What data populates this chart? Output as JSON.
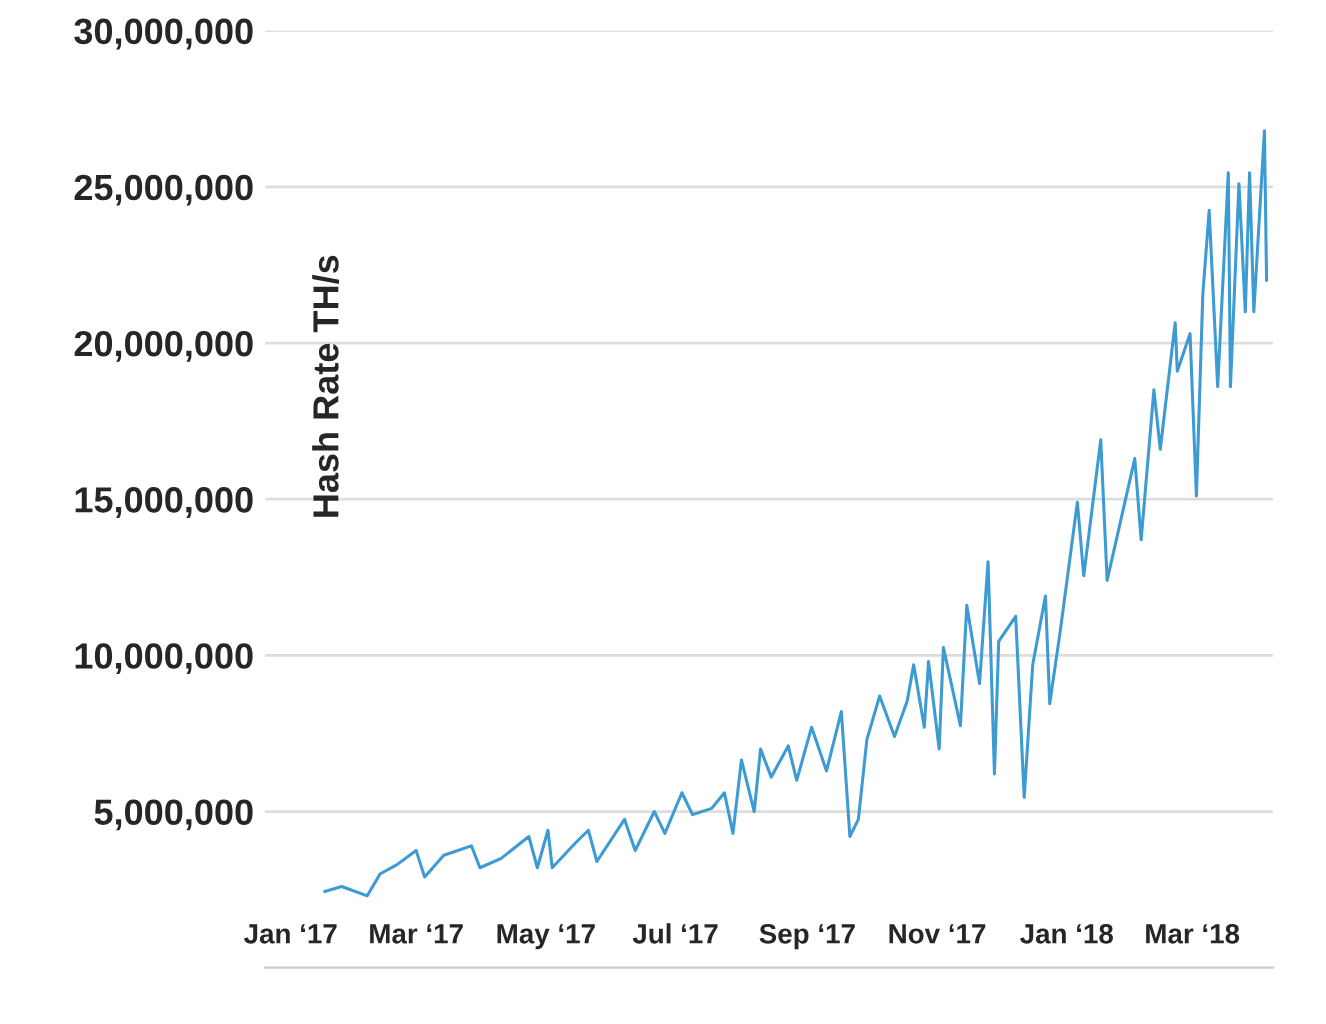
{
  "chart_data": {
    "type": "line",
    "ylabel": "Hash Rate TH/s",
    "x": [
      "2017-01-17",
      "2017-01-25",
      "2017-02-06",
      "2017-02-12",
      "2017-02-20",
      "2017-03-01",
      "2017-03-05",
      "2017-03-14",
      "2017-03-27",
      "2017-03-31",
      "2017-04-10",
      "2017-04-23",
      "2017-04-27",
      "2017-05-02",
      "2017-05-04",
      "2017-05-15",
      "2017-05-21",
      "2017-05-25",
      "2017-06-07",
      "2017-06-12",
      "2017-06-21",
      "2017-06-26",
      "2017-07-04",
      "2017-07-09",
      "2017-07-18",
      "2017-07-24",
      "2017-07-28",
      "2017-08-01",
      "2017-08-07",
      "2017-08-10",
      "2017-08-15",
      "2017-08-23",
      "2017-08-27",
      "2017-09-03",
      "2017-09-10",
      "2017-09-17",
      "2017-09-21",
      "2017-09-25",
      "2017-09-29",
      "2017-10-05",
      "2017-10-12",
      "2017-10-18",
      "2017-10-21",
      "2017-10-26",
      "2017-10-28",
      "2017-11-02",
      "2017-11-04",
      "2017-11-12",
      "2017-11-15",
      "2017-11-21",
      "2017-11-25",
      "2017-11-28",
      "2017-11-30",
      "2017-12-08",
      "2017-12-12",
      "2017-12-16",
      "2017-12-22",
      "2017-12-24",
      "2017-12-29",
      "2018-01-06",
      "2018-01-09",
      "2018-01-17",
      "2018-01-20",
      "2018-02-02",
      "2018-02-05",
      "2018-02-11",
      "2018-02-14",
      "2018-02-21",
      "2018-02-22",
      "2018-02-28",
      "2018-03-03",
      "2018-03-06",
      "2018-03-09",
      "2018-03-13",
      "2018-03-18",
      "2018-03-19",
      "2018-03-23",
      "2018-03-26",
      "2018-03-28",
      "2018-03-30",
      "2018-04-04",
      "2018-04-05"
    ],
    "series": [
      {
        "color": "#3d9bd3",
        "values": [
          2440000,
          2600000,
          2300000,
          3000000,
          3300000,
          3750000,
          2900000,
          3600000,
          3900000,
          3200000,
          3500000,
          4200000,
          3200000,
          4400000,
          3200000,
          4000000,
          4400000,
          3400000,
          4750000,
          3750000,
          5000000,
          4300000,
          5600000,
          4900000,
          5100000,
          5600000,
          4300000,
          6650000,
          5000000,
          7000000,
          6100000,
          7100000,
          6000000,
          7700000,
          6300000,
          8200000,
          4200000,
          4750000,
          7300000,
          8700000,
          7400000,
          8550000,
          9700000,
          7700000,
          9800000,
          7000000,
          10250000,
          7750000,
          11600000,
          9100000,
          13000000,
          6200000,
          10450000,
          11250000,
          5450000,
          9700000,
          11900000,
          8450000,
          10800000,
          14900000,
          12550000,
          16900000,
          12400000,
          16300000,
          13700000,
          18500000,
          16600000,
          20650000,
          19100000,
          20300000,
          15100000,
          21550000,
          24250000,
          18600000,
          25450000,
          18600000,
          25100000,
          21000000,
          25450000,
          21000000,
          26800000,
          22000000
        ]
      }
    ],
    "xlim": [
      "2016-12-20",
      "2018-04-08"
    ],
    "xticks": [
      {
        "value": "2017-01-01",
        "label": "Jan ‘17"
      },
      {
        "value": "2017-03-01",
        "label": "Mar ‘17"
      },
      {
        "value": "2017-05-01",
        "label": "May ‘17"
      },
      {
        "value": "2017-07-01",
        "label": "Jul ‘17"
      },
      {
        "value": "2017-09-01",
        "label": "Sep ‘17"
      },
      {
        "value": "2017-11-01",
        "label": "Nov ‘17"
      },
      {
        "value": "2018-01-01",
        "label": "Jan ‘18"
      },
      {
        "value": "2018-03-01",
        "label": "Mar ‘18"
      }
    ],
    "ylim": [
      0,
      30000000
    ],
    "yticks": [
      {
        "value": 5000000,
        "label": "5,000,000"
      },
      {
        "value": 10000000,
        "label": "10,000,000"
      },
      {
        "value": 15000000,
        "label": "15,000,000"
      },
      {
        "value": 20000000,
        "label": "20,000,000"
      },
      {
        "value": 25000000,
        "label": "25,000,000"
      },
      {
        "value": 30000000,
        "label": "30,000,000"
      }
    ],
    "grid": "y",
    "legend": false,
    "marker": "none",
    "line_style": "solid"
  }
}
